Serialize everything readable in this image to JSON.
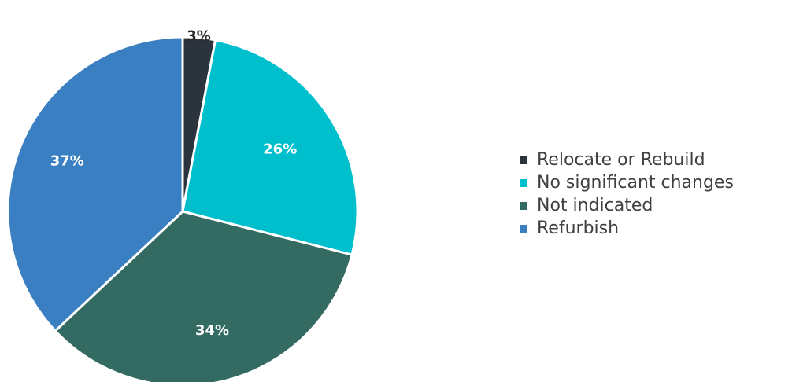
{
  "chart_data": {
    "type": "pie",
    "title": "",
    "categories": [
      "Relocate or Rebuild",
      "No significant changes",
      "Not indicated",
      "Refurbish"
    ],
    "values": [
      3,
      26,
      34,
      37
    ],
    "data_labels": [
      "3%",
      "26%",
      "34%",
      "37%"
    ],
    "colors": [
      "#2b333d",
      "#00bfcc",
      "#336b63",
      "#3a7fc1"
    ],
    "label_colors": [
      "#262626",
      "#ffffff",
      "#ffffff",
      "#ffffff"
    ],
    "start_angle_deg": 0,
    "direction": "clockwise",
    "legend": {
      "placement": "right",
      "entries": [
        "Relocate or Rebuild",
        "No significant changes",
        "Not indicated",
        "Refurbish"
      ]
    }
  }
}
